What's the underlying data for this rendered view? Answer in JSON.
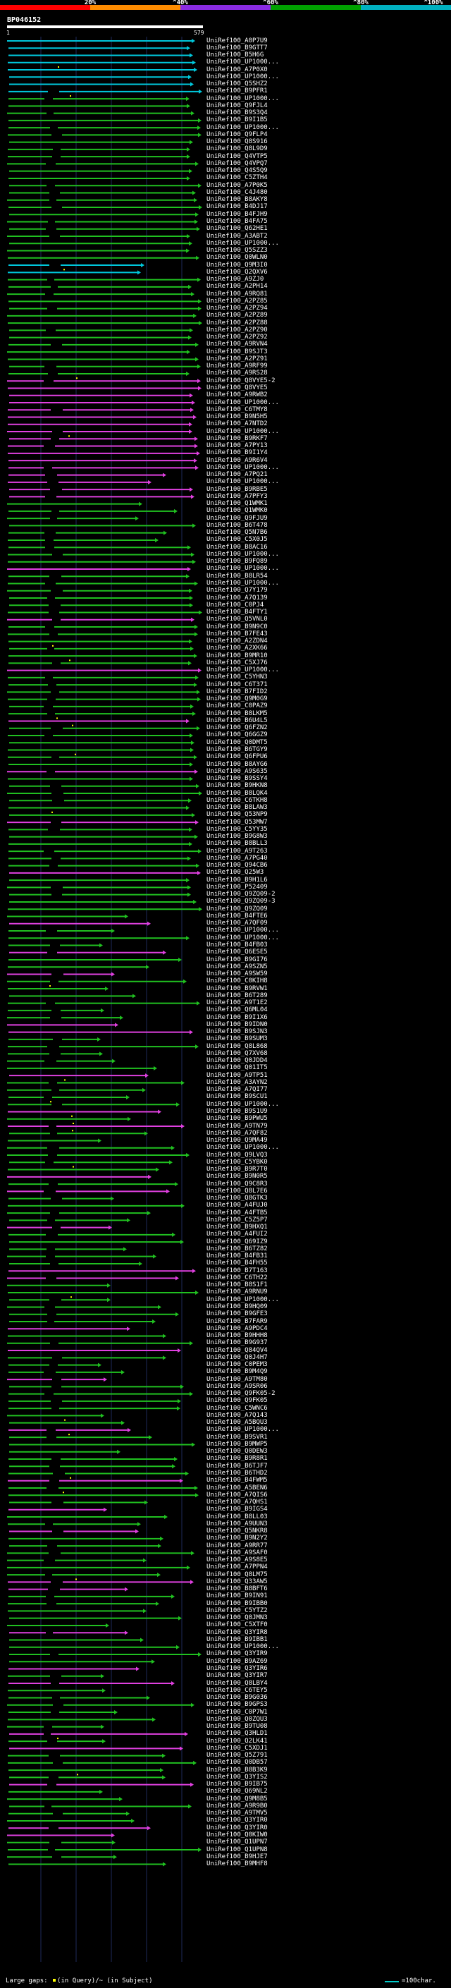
{
  "scale": {
    "ticks": [
      "20%",
      "^40%",
      "^60%",
      "^80%",
      "^100%"
    ],
    "segment_colors": [
      "#ff0000",
      "#ff8c00",
      "#8a2be2",
      "#00a000",
      "#00b0c0"
    ]
  },
  "query": {
    "name": "BP046152",
    "start": "1",
    "end": "579"
  },
  "footer": {
    "large_gaps_label": "Large gaps:",
    "in_query_label": "(in Query)",
    "in_subject_label": "/~ (in Subject)",
    "legend_label": "=100char."
  },
  "colors": {
    "cyan": "#00c8dc",
    "green": "#20c020",
    "magenta": "#e040e0",
    "gap_dot": "#ffff00",
    "grid": "#1e2a5a"
  },
  "hits": [
    "UniRef100_A0P7U9",
    "UniRef100_B9GTT7",
    "UniRef100_B5H6G",
    "UniRef100_UP1000...",
    "UniRef100_A7P0X0",
    "UniRef100_UP1000...",
    "UniRef100_Q5SHZ2",
    "UniRef100_B9PFR1",
    "UniRef100_UP1000...",
    "UniRef100_Q9FJL4",
    "UniRef100_B9S3Q4",
    "UniRef100_B9I1B5",
    "UniRef100_UP1000...",
    "UniRef100_Q9FLP4",
    "UniRef100_Q8S916",
    "UniRef100_Q8L9D9",
    "UniRef100_Q4VTP5",
    "UniRef100_Q4VPQ7",
    "UniRef100_Q4S5Q9",
    "UniRef100_C5ZTH4",
    "UniRef100_A7P0K5",
    "UniRef100_C4J480",
    "UniRef100_B8AKY8",
    "UniRef100_B4DJ17",
    "UniRef100_B4FJH9",
    "UniRef100_B4FA75",
    "UniRef100_Q62HE1",
    "UniRef100_A3ABT2",
    "UniRef100_UP1000...",
    "UniRef100_Q5SZZ3",
    "UniRef100_Q0WLN0",
    "UniRef100_Q9M3I0",
    "UniRef100_Q2QXV6",
    "UniRef100_A9ZJ0",
    "UniRef100_A2PH14",
    "UniRef100_A9RQ81",
    "UniRef100_A2PZ85",
    "UniRef100_A2PZ94",
    "UniRef100_A2PZ89",
    "UniRef100_A2PZ88",
    "UniRef100_A2PZ90",
    "UniRef100_A2PZ92",
    "UniRef100_A9RVN4",
    "UniRef100_B9SJT3",
    "UniRef100_A2PZ91",
    "UniRef100_A9RF99",
    "UniRef100_A9RS28",
    "UniRef100_Q8VYE5-2",
    "UniRef100_Q8VYE5",
    "UniRef100_A9RWB2",
    "UniRef100_UP1000...",
    "UniRef100_C6TMY8",
    "UniRef100_B9N5H5",
    "UniRef100_A7NTD2",
    "UniRef100_UP1000...",
    "UniRef100_B9RKF7",
    "UniRef100_A7PY13",
    "UniRef100_B9I1Y4",
    "UniRef100_A9R6V4",
    "UniRef100_UP1000...",
    "UniRef100_A7PQ21",
    "UniRef100_UP1000...",
    "UniRef100_B9RBE5",
    "UniRef100_A7PFY3",
    "UniRef100_Q1WMK1",
    "UniRef100_Q1WMK0",
    "UniRef100_Q9FJU9",
    "UniRef100_B6T478",
    "UniRef100_Q5N7B6",
    "UniRef100_C5X0J5",
    "UniRef100_B8AC16",
    "UniRef100_UP1000...",
    "UniRef100_B9FQ89",
    "UniRef100_UP1000...",
    "UniRef100_B8LR54",
    "UniRef100_UP1000...",
    "UniRef100_Q7Y179",
    "UniRef100_A7Q139",
    "UniRef100_C0PJ4",
    "UniRef100_B4FTY1",
    "UniRef100_Q5VNL0",
    "UniRef100_B9N9C0",
    "UniRef100_B7FE43",
    "UniRef100_A2ZDN4",
    "UniRef100_A2XK66",
    "UniRef100_B9MR10",
    "UniRef100_C5XJ76",
    "UniRef100_UP1000...",
    "UniRef100_C5YHN3",
    "UniRef100_C6T371",
    "UniRef100_B7FID2",
    "UniRef100_Q9M0G9",
    "UniRef100_C0PAZ9",
    "UniRef100_B8LKM5",
    "UniRef100_B6U4L5",
    "UniRef100_Q6FZN2",
    "UniRef100_Q6GGZ9",
    "UniRef100_Q0DMT5",
    "UniRef100_B6TGY9",
    "UniRef100_Q6FPU6",
    "UniRef100_B8AYG6",
    "UniRef100_A9S635",
    "UniRef100_B9SSY4",
    "UniRef100_B9HKN8",
    "UniRef100_B8LQK4",
    "UniRef100_C6TKH8",
    "UniRef100_B8LAW3",
    "UniRef100_Q53NP9",
    "UniRef100_Q53MW7",
    "UniRef100_C5YY35",
    "UniRef100_B9G8W3",
    "UniRef100_B8BLL3",
    "UniRef100_A9T263",
    "UniRef100_A7PG40",
    "UniRef100_Q94CB6",
    "UniRef100_Q25W3",
    "UniRef100_B9H1L6",
    "UniRef100_P52409",
    "UniRef100_Q9ZQ09-2",
    "UniRef100_Q9ZQ09-3",
    "UniRef100_Q9ZQ09",
    "UniRef100_B4FTE6",
    "UniRef100_A7QF09",
    "UniRef100_UP1000...",
    "UniRef100_UP1000...",
    "UniRef100_B4FB03",
    "UniRef100_Q6ESE5",
    "UniRef100_B9GI76",
    "UniRef100_A9SZN5",
    "UniRef100_A9SW59",
    "UniRef100_C0KIH8",
    "UniRef100_B9RVW1",
    "UniRef100_B6T289",
    "UniRef100_A9T1E2",
    "UniRef100_Q6ML04",
    "UniRef100_B9I1X6",
    "UniRef100_B9IDN0",
    "UniRef100_B9SJN3",
    "UniRef100_B9SUM3",
    "UniRef100_Q8L868",
    "UniRef100_Q7XV68",
    "UniRef100_Q0JDD4",
    "UniRef100_Q01IT5",
    "UniRef100_A9TP51",
    "UniRef100_A3AYN2",
    "UniRef100_A7QI77",
    "UniRef100_B9SCU1",
    "UniRef100_UP1000...",
    "UniRef100_B9S1U9",
    "UniRef100_B9PWU5",
    "UniRef100_A9TN79",
    "UniRef100_A7QF82",
    "UniRef100_Q9MA49",
    "UniRef100_UP1000...",
    "UniRef100_Q9LVQ3",
    "UniRef100_C5YBK0",
    "UniRef100_B9R7T0",
    "UniRef100_B9N0R5",
    "UniRef100_Q9C8R3",
    "UniRef100_Q8L7E6",
    "UniRef100_Q8GTK3",
    "UniRef100_A4FUJ0",
    "UniRef100_A4FTB5",
    "UniRef100_C5Z5P7",
    "UniRef100_B9HXQ1",
    "UniRef100_A4FUI2",
    "UniRef100_Q69IZ9",
    "UniRef100_B6TZ82",
    "UniRef100_B4FB31",
    "UniRef100_B4FH55",
    "UniRef100_B7T163",
    "UniRef100_C6TH22",
    "UniRef100_B8S1F1",
    "UniRef100_A9RNU9",
    "UniRef100_UP1000...",
    "UniRef100_B9HQ09",
    "UniRef100_B9GFE3",
    "UniRef100_B7FAR9",
    "UniRef100_A9PDC4",
    "UniRef100_B9HHH8",
    "UniRef100_B9G937",
    "UniRef100_Q84QV4",
    "UniRef100_Q0J4H7",
    "UniRef100_C0PEM3",
    "UniRef100_B9M4Q9",
    "UniRef100_A9TM80",
    "UniRef100_A9SR06",
    "UniRef100_Q9FK05-2",
    "UniRef100_Q9FK05",
    "UniRef100_C5WNC6",
    "UniRef100_A7Q143",
    "UniRef100_A5BQU3",
    "UniRef100_UP1000...",
    "UniRef100_B9SVR1",
    "UniRef100_B9MWP5",
    "UniRef100_Q0DEW3",
    "UniRef100_B9R8R1",
    "UniRef100_B6TJF7",
    "UniRef100_B6THD2",
    "UniRef100_B4FWM5",
    "UniRef100_A5BEN6",
    "UniRef100_A7QIS6",
    "UniRef100_A7QHS1",
    "UniRef100_B9IGS4",
    "UniRef100_B8LL03",
    "UniRef100_A9UUN3",
    "UniRef100_Q5NKR8",
    "UniRef100_B9N2Y2",
    "UniRef100_A9RR77",
    "UniRef100_A9SAF0",
    "UniRef100_A9S8E5",
    "UniRef100_A7PPN4",
    "UniRef100_Q8LM75",
    "UniRef100_Q33AW5",
    "UniRef100_B8BFT6",
    "UniRef100_B9IN91",
    "UniRef100_B9IBB0",
    "UniRef100_C5YTZ2",
    "UniRef100_Q0JMN3",
    "UniRef100_C5XTF0",
    "UniRef100_Q3YIR8",
    "UniRef100_B9IBB1",
    "UniRef100_UP1000...",
    "UniRef100_Q3YIR9",
    "UniRef100_B9AZ69",
    "UniRef100_Q3YIR6",
    "UniRef100_Q3YIR7",
    "UniRef100_Q8LBY4",
    "UniRef100_C6TEY5",
    "UniRef100_B9G036",
    "UniRef100_B9GPS3",
    "UniRef100_C0P7W1",
    "UniRef100_Q0ZQU3",
    "UniRef100_B9TU08",
    "UniRef100_Q3HLD1",
    "UniRef100_Q2LK41",
    "UniRef100_C5XDJ1",
    "UniRef100_Q5Z791",
    "UniRef100_Q0DB57",
    "UniRef100_B8B3K9",
    "UniRef100_Q3YIS2",
    "UniRef100_B9IB75",
    "UniRef100_Q69NL2",
    "UniRef100_Q9M8B5",
    "UniRef100_A9R9B0",
    "UniRef100_A9TMV5",
    "UniRef100_Q3YIR0",
    "UniRef100_Q3YIR0",
    "UniRef100_Q0KIW0",
    "UniRef100_Q1UPN7",
    "UniRef100_Q1UPN8",
    "UniRef100_B9HJE7",
    "UniRef100_B9MHF8"
  ]
}
